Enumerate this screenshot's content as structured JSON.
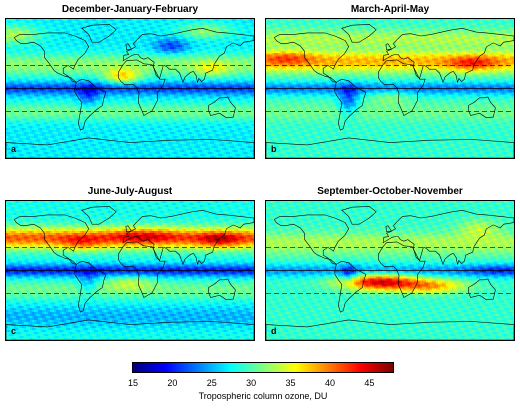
{
  "panels": [
    {
      "title": "December-January-February",
      "letter": "a",
      "season": "DJF"
    },
    {
      "title": "March-April-May",
      "letter": "b",
      "season": "MAM"
    },
    {
      "title": "June-July-August",
      "letter": "c",
      "season": "JJA"
    },
    {
      "title": "September-October-November",
      "letter": "d",
      "season": "SON"
    }
  ],
  "colorbar": {
    "label": "Tropospheric column ozone, DU",
    "min": 15,
    "max": 48,
    "ticks": [
      "15",
      "20",
      "25",
      "30",
      "35",
      "40",
      "45"
    ],
    "colormap": "jet"
  },
  "reference_lines": {
    "solid": "equator",
    "dashed": [
      "30N",
      "30S"
    ]
  }
}
